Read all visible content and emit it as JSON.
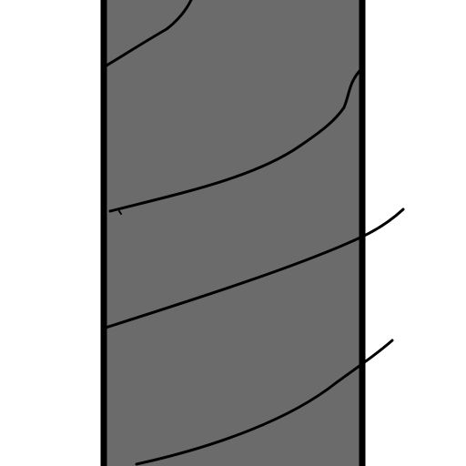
{
  "drawing": {
    "background_color": "#ffffff",
    "column_fill_color": "#6b6b6b",
    "outline_color": "#000000",
    "stroke_color": "#000000",
    "stroke_count": 5
  }
}
